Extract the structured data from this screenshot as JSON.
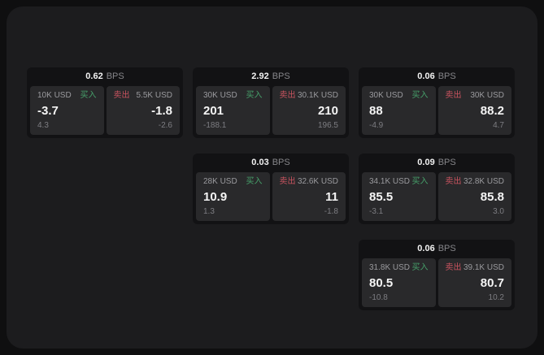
{
  "colors": {
    "outer_background": "#0f0f10",
    "panel_background": "#1c1c1e",
    "card_background": "#121214",
    "pane_background": "#29292b",
    "buy_green": "#46a06a",
    "sell_red": "#c9535f"
  },
  "cards": [
    {
      "header": {
        "value": "0.62",
        "unit": "BPS"
      },
      "buy": {
        "amount": "10K USD",
        "label": "买入",
        "price": "-3.7",
        "change": "4.3"
      },
      "sell": {
        "label": "卖出",
        "amount": "5.5K USD",
        "price": "-1.8",
        "change": "-2.6"
      }
    },
    {
      "header": {
        "value": "2.92",
        "unit": "BPS"
      },
      "buy": {
        "amount": "30K USD",
        "label": "买入",
        "price": "201",
        "change": "-188.1"
      },
      "sell": {
        "label": "卖出",
        "amount": "30.1K USD",
        "price": "210",
        "change": "196.5"
      }
    },
    {
      "header": {
        "value": "0.06",
        "unit": "BPS"
      },
      "buy": {
        "amount": "30K USD",
        "label": "买入",
        "price": "88",
        "change": "-4.9"
      },
      "sell": {
        "label": "卖出",
        "amount": "30K USD",
        "price": "88.2",
        "change": "4.7"
      }
    },
    {
      "header": {
        "value": "0.03",
        "unit": "BPS"
      },
      "buy": {
        "amount": "28K USD",
        "label": "买入",
        "price": "10.9",
        "change": "1.3"
      },
      "sell": {
        "label": "卖出",
        "amount": "32.6K USD",
        "price": "11",
        "change": "-1.8"
      }
    },
    {
      "header": {
        "value": "0.09",
        "unit": "BPS"
      },
      "buy": {
        "amount": "34.1K USD",
        "label": "买入",
        "price": "85.5",
        "change": "-3.1"
      },
      "sell": {
        "label": "卖出",
        "amount": "32.8K USD",
        "price": "85.8",
        "change": "3.0"
      }
    },
    {
      "header": {
        "value": "0.06",
        "unit": "BPS"
      },
      "buy": {
        "amount": "31.8K USD",
        "label": "买入",
        "price": "80.5",
        "change": "-10.8"
      },
      "sell": {
        "label": "卖出",
        "amount": "39.1K USD",
        "price": "80.7",
        "change": "10.2"
      }
    }
  ]
}
